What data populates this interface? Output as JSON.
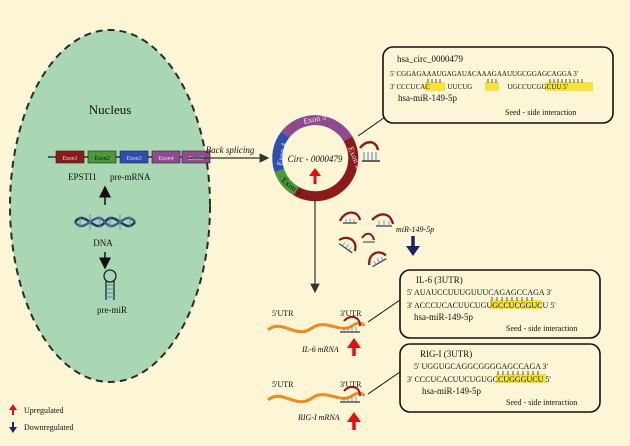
{
  "nucleus": {
    "title": "Nucleus",
    "exons": [
      "Exon1",
      "Exon2",
      "Exon3",
      "Exon4",
      "Exon5"
    ],
    "gene_label": "EPSTI1",
    "premrna_label": "pre-mRNA",
    "dna_label": "DNA",
    "premir_label": "pre-miR"
  },
  "back_splicing_label": "Back splicing",
  "circ": {
    "center_label": "Circ - 0000479",
    "exon_labels": [
      "Exon 5",
      "Exon 2",
      "Exon 3",
      "Exon 4"
    ]
  },
  "mir_label": "miR-149-5p",
  "box1": {
    "title": "hsa_circ_0000479",
    "top_seq": "5' CGGAGAAAUGAGAUACAAAGAAUUGCGGAGCAGGA 3'",
    "bottom_seq": "3' CCCUCAC          UUCUG                    UGCCUCGGCUU 5'",
    "name": "hsa-miR-149-5p",
    "caption": "Seed - side interaction"
  },
  "box2": {
    "title": "IL-6 (3UTR)",
    "top_seq": "5' AUAUCCUUUGUUUCAGAGCCAGA 3'",
    "bottom_seq": "3' ACCCUCACUUCUGUGCCUCGGUCU 5'",
    "name": "hsa-miR-149-5p",
    "caption": "Seed - side interaction"
  },
  "box3": {
    "title": "RIG-I (3UTR)",
    "top_seq": "5' UGGUGCAGGCGGGGAGCCAGA 3'",
    "bottom_seq": "3' CCCUCACUUCUGUGCCUGGGUCU 5'",
    "name": "hsa-miR-149-5p",
    "caption": "Seed - side interaction"
  },
  "mrna1": {
    "utr5": "5'UTR",
    "utr3": "3'UTR",
    "label": "IL-6 mRNA"
  },
  "mrna2": {
    "utr5": "5'UTR",
    "utr3": "3'UTR",
    "label": "RIG-I mRNA"
  },
  "legend": {
    "up": "Upregulated",
    "down": "Downregulated"
  },
  "colors": {
    "background": "#fdf6d6",
    "nucleus_fill": "#a9d7b4",
    "exon1": "#8b1a1a",
    "exon2": "#4a9a3a",
    "exon3": "#2f4fb0",
    "exon4": "#8e4b8e",
    "circ_exon5": "#8e4b8e",
    "circ_exon2": "#8b1a1a",
    "circ_exon3": "#4a9a3a",
    "circ_exon4": "#2f4fb0",
    "mrna": "#f08a1e",
    "up_arrow": "#e01010",
    "down_arrow": "#1a2560",
    "seed_highlight": "#f5e23a"
  }
}
